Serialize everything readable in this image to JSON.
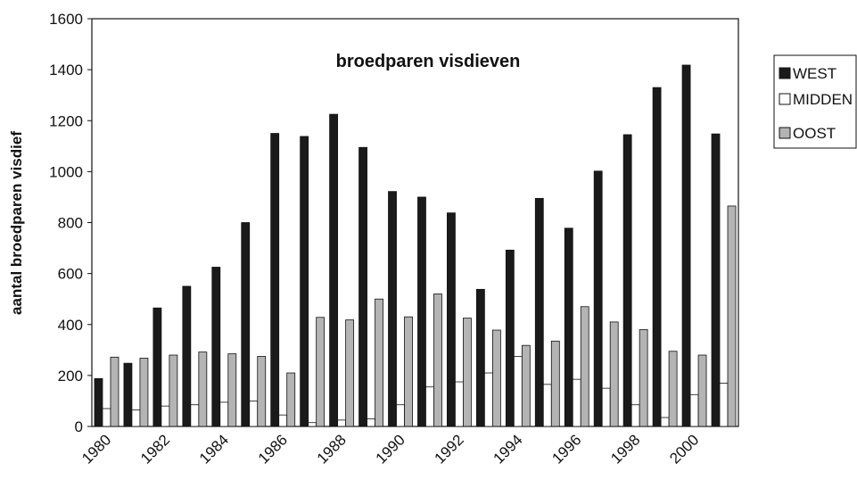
{
  "chart_data": {
    "type": "bar",
    "title": "broedparen visdieven",
    "y_label": "aantal broedparen visdief",
    "categories": [
      "1980",
      null,
      "1982",
      null,
      "1984",
      null,
      "1986",
      null,
      "1988",
      null,
      "1990",
      null,
      "1992",
      null,
      "1994",
      null,
      "1996",
      null,
      "1998",
      null,
      "2000",
      null
    ],
    "series": [
      {
        "name": "WEST",
        "color": "#1a1a1a",
        "values": [
          188,
          248,
          465,
          550,
          625,
          800,
          1150,
          1138,
          1225,
          1095,
          922,
          900,
          838,
          538,
          692,
          895,
          778,
          1002,
          1145,
          1330,
          1418,
          1148
        ]
      },
      {
        "name": "MIDDEN",
        "color": "#ffffff",
        "values": [
          70,
          65,
          80,
          85,
          95,
          100,
          45,
          15,
          25,
          30,
          85,
          155,
          175,
          210,
          275,
          165,
          185,
          150,
          85,
          35,
          125,
          170
        ]
      },
      {
        "name": "OOST",
        "color": "#b4b4b4",
        "values": [
          272,
          268,
          280,
          292,
          285,
          275,
          210,
          428,
          418,
          500,
          430,
          520,
          425,
          378,
          318,
          335,
          470,
          410,
          380,
          295,
          280,
          865
        ]
      }
    ],
    "ylim": [
      0,
      1600
    ],
    "yticks": [
      0,
      200,
      400,
      600,
      800,
      1000,
      1200,
      1400,
      1600
    ],
    "grid": false,
    "legend": "right"
  }
}
